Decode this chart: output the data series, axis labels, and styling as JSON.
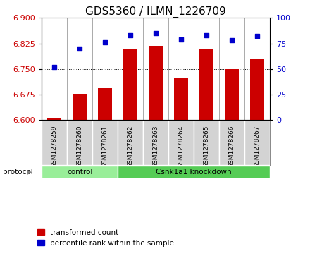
{
  "title": "GDS5360 / ILMN_1226709",
  "samples": [
    "GSM1278259",
    "GSM1278260",
    "GSM1278261",
    "GSM1278262",
    "GSM1278263",
    "GSM1278264",
    "GSM1278265",
    "GSM1278266",
    "GSM1278267"
  ],
  "transformed_count": [
    6.607,
    6.677,
    6.693,
    6.807,
    6.817,
    6.723,
    6.808,
    6.75,
    6.78
  ],
  "percentile_rank": [
    52,
    70,
    76,
    83,
    85,
    79,
    83,
    78,
    82
  ],
  "ylim_left": [
    6.6,
    6.9
  ],
  "ylim_right": [
    0,
    100
  ],
  "yticks_left": [
    6.6,
    6.675,
    6.75,
    6.825,
    6.9
  ],
  "yticks_right": [
    0,
    25,
    50,
    75,
    100
  ],
  "bar_color": "#cc0000",
  "dot_color": "#0000cc",
  "protocol_groups": [
    {
      "label": "control",
      "start": 0,
      "end": 3,
      "color": "#99ee99"
    },
    {
      "label": "Csnk1a1 knockdown",
      "start": 3,
      "end": 9,
      "color": "#55cc55"
    }
  ],
  "legend_bar_label": "transformed count",
  "legend_dot_label": "percentile rank within the sample",
  "protocol_label": "protocol",
  "title_fontsize": 11,
  "tick_fontsize": 8,
  "label_fontsize": 8,
  "sample_box_color": "#d3d3d3",
  "sample_box_edge": "#aaaaaa"
}
